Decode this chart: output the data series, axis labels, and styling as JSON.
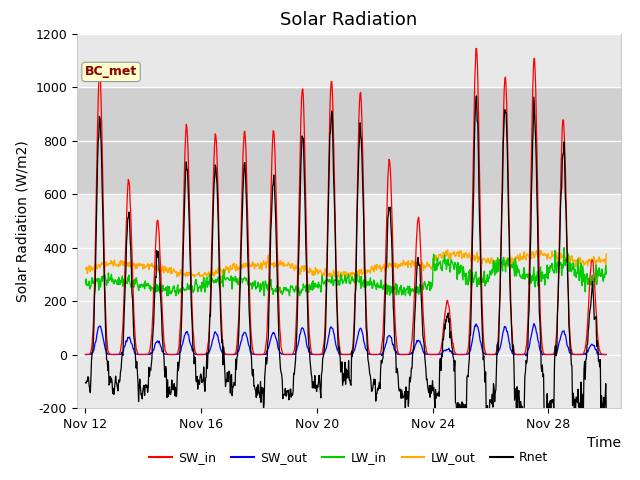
{
  "title": "Solar Radiation",
  "xlabel": "Time",
  "ylabel": "Solar Radiation (W/m2)",
  "ylim": [
    -200,
    1200
  ],
  "x_tick_labels": [
    "Nov 12",
    "Nov 16",
    "Nov 20",
    "Nov 24",
    "Nov 28"
  ],
  "x_tick_positions": [
    0,
    4,
    8,
    12,
    16
  ],
  "station_label": "BC_met",
  "sw_in_color": "#ff0000",
  "sw_out_color": "#0000ff",
  "lw_in_color": "#00cc00",
  "lw_out_color": "#ffaa00",
  "rnet_color": "#000000",
  "bg_color": "#e8e8e8",
  "bg_band_color": "#d0d0d0",
  "title_fontsize": 13,
  "axis_label_fontsize": 10,
  "tick_fontsize": 9,
  "day_peaks": [
    1060,
    650,
    500,
    855,
    825,
    840,
    835,
    995,
    1025,
    985,
    730,
    510,
    200,
    1150,
    1040,
    1110,
    880,
    355
  ],
  "n_days": 18,
  "n_per_day": 48
}
